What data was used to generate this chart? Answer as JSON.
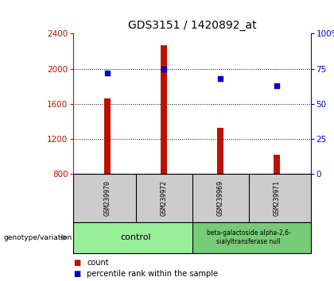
{
  "title": "GDS3151 / 1420892_at",
  "samples": [
    "GSM239970",
    "GSM239972",
    "GSM239969",
    "GSM239971"
  ],
  "counts": [
    1660,
    2270,
    1330,
    1020
  ],
  "percentiles": [
    72,
    75,
    68,
    63
  ],
  "ylim_left": [
    800,
    2400
  ],
  "ylim_right": [
    0,
    100
  ],
  "yticks_left": [
    800,
    1200,
    1600,
    2000,
    2400
  ],
  "yticks_right": [
    0,
    25,
    50,
    75,
    100
  ],
  "bar_color": "#bb1100",
  "dot_color": "#0000cc",
  "group1_label": "control",
  "group1_color": "#99ee99",
  "group2_label": "beta-galactoside alpha-2,6-\nsialyltransferase null",
  "group2_color": "#77cc77",
  "sample_bg_color": "#cccccc",
  "background_color": "#ffffff",
  "legend_count_color": "#bb1100",
  "legend_pct_color": "#0000cc",
  "bar_width": 0.12
}
